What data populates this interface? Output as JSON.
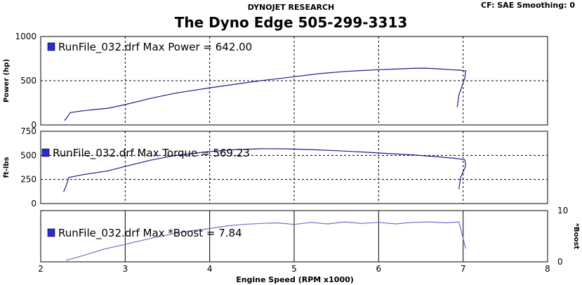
{
  "header": {
    "company": "DYNOJET RESEARCH",
    "settings": "CF: SAE  Smoothing: 0",
    "title": "The Dyno Edge 505-299-3313"
  },
  "chart_data": [
    {
      "type": "line",
      "ylabel": "Power (hp)",
      "ylim": [
        0,
        1000
      ],
      "yticks": [
        "1000",
        "500",
        "0"
      ],
      "ytick_values": [
        1000,
        500,
        0
      ],
      "legend": "RunFile_032.drf Max Power = 642.00",
      "color": "#1c1c8c",
      "x": [
        2.28,
        2.3,
        2.35,
        2.5,
        2.8,
        3.0,
        3.3,
        3.6,
        4.0,
        4.3,
        4.6,
        5.0,
        5.3,
        5.6,
        5.8,
        6.0,
        6.2,
        6.4,
        6.55,
        6.7,
        6.85,
        6.95,
        7.03,
        7.02,
        6.95,
        6.93
      ],
      "y": [
        50,
        70,
        140,
        160,
        190,
        230,
        300,
        360,
        420,
        460,
        500,
        545,
        580,
        605,
        615,
        625,
        632,
        640,
        642,
        635,
        625,
        620,
        612,
        530,
        340,
        200
      ]
    },
    {
      "type": "line",
      "ylabel": "ft-lbs",
      "ylim": [
        0,
        750
      ],
      "yticks": [
        "750",
        "500",
        "250",
        "0"
      ],
      "ytick_values": [
        750,
        500,
        250,
        0
      ],
      "legend": "RunFile_032.drf Max Torque = 569.23",
      "color": "#1c1c8c",
      "x": [
        2.27,
        2.3,
        2.33,
        2.5,
        2.8,
        3.0,
        3.3,
        3.6,
        4.0,
        4.3,
        4.6,
        4.9,
        5.2,
        5.5,
        5.8,
        6.1,
        6.4,
        6.7,
        6.9,
        7.02,
        7.03,
        6.97,
        6.95
      ],
      "y": [
        120,
        180,
        270,
        300,
        340,
        385,
        450,
        500,
        540,
        560,
        569,
        568,
        560,
        548,
        535,
        520,
        505,
        485,
        470,
        455,
        390,
        270,
        150
      ]
    },
    {
      "type": "line",
      "ylabel": "*Boost",
      "ylim": [
        0,
        10
      ],
      "yticks": [
        "10",
        "0"
      ],
      "ytick_values": [
        10,
        0
      ],
      "y_axis_side": "right",
      "legend": "RunFile_032.drf Max *Boost = 7.84",
      "color": "#7070c8",
      "x": [
        2.3,
        2.5,
        2.75,
        3.0,
        3.2,
        3.4,
        3.6,
        3.8,
        4.0,
        4.2,
        4.4,
        4.6,
        4.8,
        5.0,
        5.2,
        5.4,
        5.6,
        5.8,
        6.0,
        6.2,
        6.4,
        6.6,
        6.8,
        6.95,
        7.03
      ],
      "y": [
        0.3,
        1.2,
        2.5,
        3.4,
        4.2,
        4.9,
        5.6,
        6.1,
        6.5,
        7.0,
        7.3,
        7.5,
        7.6,
        7.3,
        7.7,
        7.4,
        7.8,
        7.5,
        7.7,
        7.4,
        7.7,
        7.8,
        7.6,
        7.8,
        2.6
      ]
    }
  ],
  "x_axis": {
    "label": "Engine Speed (RPM x1000)",
    "range": [
      2,
      8
    ],
    "ticks": [
      "2",
      "3",
      "4",
      "5",
      "6",
      "7",
      "8"
    ],
    "tick_values": [
      2,
      3,
      4,
      5,
      6,
      7,
      8
    ]
  }
}
